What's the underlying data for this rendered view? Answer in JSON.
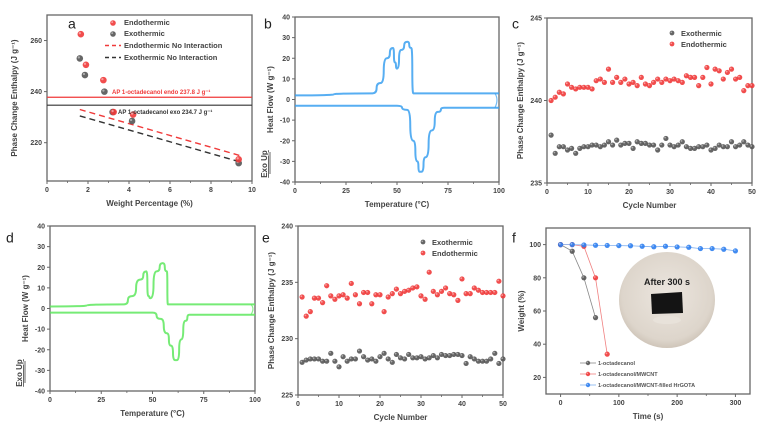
{
  "colors": {
    "endo": "#f03a3a",
    "exo": "#555555",
    "blue_trace": "#3aa0f0",
    "green_trace": "#5ee85e",
    "mwcnt_blue": "#2f7ff0",
    "axis": "#666666"
  },
  "chart_data": [
    {
      "panel": "a",
      "type": "scatter",
      "xlabel": "Weight Percentage (%)",
      "ylabel": "Phase Change Enthalpy (J g⁻¹)",
      "xlim": [
        0,
        10
      ],
      "ylim": [
        205,
        270
      ],
      "xticks": [
        "0",
        "2",
        "4",
        "6",
        "8",
        "10"
      ],
      "yticks": [
        "220",
        "240",
        "260"
      ],
      "legend": [
        "Endothermic",
        "Exothermic",
        "Endothermic No Interaction",
        "Exothermic No Interaction"
      ],
      "series": [
        {
          "name": "Endothermic",
          "x": [
            1.65,
            1.9,
            2.75,
            3.25,
            4.2,
            9.35
          ],
          "y": [
            262.5,
            250.5,
            244.5,
            232,
            231,
            213.5
          ]
        },
        {
          "name": "Exothermic",
          "x": [
            1.6,
            1.85,
            2.8,
            3.2,
            4.15,
            9.35
          ],
          "y": [
            253,
            246.5,
            240,
            232,
            228.5,
            212
          ]
        },
        {
          "name": "Endothermic No Interaction",
          "x": [
            1.6,
            9.4
          ],
          "y": [
            233,
            215
          ]
        },
        {
          "name": "Exothermic No Interaction",
          "x": [
            1.6,
            9.4
          ],
          "y": [
            230.5,
            212.5
          ]
        }
      ],
      "annotations": [
        "AP 1-octadecanol endo 237.8 J g⁻¹",
        "AP 1-octadecanol exo 234.7 J g⁻¹"
      ],
      "hlines": [
        237.8,
        234.7
      ]
    },
    {
      "panel": "b",
      "type": "line",
      "xlabel": "Temperature (°C)",
      "ylabel": "Heat Flow (W g⁻¹)",
      "side_label": "Exo Up",
      "xlim": [
        0,
        100
      ],
      "ylim": [
        -40,
        40
      ],
      "xticks": [
        "0",
        "25",
        "50",
        "75",
        "100"
      ],
      "yticks": [
        "40",
        "30",
        "20",
        "10",
        "0",
        "-10",
        "-20",
        "-30",
        "-40"
      ],
      "heating": {
        "x": [
          0,
          38,
          42,
          45,
          48,
          49,
          50,
          52,
          55,
          57,
          58,
          59,
          100
        ],
        "y": [
          2,
          3,
          8,
          20,
          25,
          18,
          15,
          24,
          28,
          25,
          3,
          3,
          3
        ]
      },
      "cooling": {
        "x": [
          0,
          50,
          55,
          58,
          60,
          61,
          62,
          64,
          67,
          70,
          73,
          100
        ],
        "y": [
          -3,
          -3,
          -5,
          -20,
          -30,
          -35,
          -35,
          -28,
          -15,
          -6,
          -4,
          -4
        ]
      }
    },
    {
      "panel": "c",
      "type": "scatter",
      "xlabel": "Cycle Number",
      "ylabel": "Phase Change Enthalpy (J g⁻¹)",
      "xlim": [
        0,
        50
      ],
      "ylim": [
        235,
        245
      ],
      "xticks": [
        "0",
        "10",
        "20",
        "30",
        "40",
        "50"
      ],
      "yticks": [
        "235",
        "240",
        "245"
      ],
      "legend": [
        "Exothermic",
        "Endothermic"
      ],
      "series": [
        {
          "name": "Exothermic",
          "values": [
            237.9,
            236.8,
            237.2,
            237.2,
            237.0,
            237.1,
            236.8,
            237.1,
            237.2,
            237.2,
            237.3,
            237.3,
            237.2,
            237.3,
            237.5,
            237.3,
            237.6,
            237.3,
            237.4,
            237.4,
            237.1,
            237.5,
            237.4,
            237.4,
            237.3,
            237.3,
            237.0,
            237.3,
            237.7,
            237.3,
            237.2,
            237.3,
            237.5,
            237.2,
            237.1,
            237.1,
            237.2,
            237.2,
            237.3,
            237.0,
            237.1,
            237.3,
            237.2,
            237.2,
            237.5,
            237.2,
            237.3,
            237.5,
            237.3,
            237.2
          ]
        },
        {
          "name": "Endothermic",
          "values": [
            240.0,
            240.2,
            240.5,
            240.4,
            241.0,
            240.8,
            240.7,
            240.8,
            240.8,
            240.8,
            240.7,
            241.2,
            241.3,
            241.1,
            241.9,
            241.1,
            241.4,
            241.1,
            241.3,
            241.0,
            241.1,
            240.9,
            241.4,
            241.0,
            240.9,
            241.1,
            241.3,
            241.1,
            241.3,
            241.2,
            241.3,
            241.2,
            241.1,
            241.5,
            241.4,
            241.4,
            240.9,
            241.4,
            242.0,
            241.0,
            241.9,
            241.8,
            241.3,
            241.7,
            241.9,
            241.3,
            241.4,
            240.6,
            240.9,
            240.9
          ]
        }
      ]
    },
    {
      "panel": "d",
      "type": "line",
      "xlabel": "Temperature (°C)",
      "ylabel": "Heat Flow (W g⁻¹)",
      "side_label": "Exo Up",
      "xlim": [
        0,
        100
      ],
      "ylim": [
        -40,
        40
      ],
      "xticks": [
        "0",
        "25",
        "50",
        "75",
        "100"
      ],
      "yticks": [
        "40",
        "30",
        "20",
        "10",
        "0",
        "-10",
        "-20",
        "-30",
        "-40"
      ],
      "heating": {
        "x": [
          0,
          36,
          40,
          44,
          47,
          48,
          49,
          52,
          55,
          57,
          57.5,
          58,
          100
        ],
        "y": [
          1,
          2,
          6,
          14,
          18,
          6,
          5,
          18,
          22,
          18,
          2,
          2,
          2
        ]
      },
      "cooling": {
        "x": [
          0,
          50,
          54,
          57,
          59,
          61,
          62,
          64,
          66,
          68,
          100
        ],
        "y": [
          -2,
          -2,
          -5,
          -12,
          -18,
          -25,
          -25,
          -15,
          -6,
          -3,
          -3
        ]
      }
    },
    {
      "panel": "e",
      "type": "scatter",
      "xlabel": "Cycle Number",
      "ylabel": "Phase Change Enthalpy (J g⁻¹)",
      "xlim": [
        0,
        50
      ],
      "ylim": [
        225,
        240
      ],
      "xticks": [
        "0",
        "10",
        "20",
        "30",
        "40",
        "50"
      ],
      "yticks": [
        "225",
        "230",
        "235",
        "240"
      ],
      "legend": [
        "Exothermic",
        "Endothermic"
      ],
      "series": [
        {
          "name": "Exothermic",
          "values": [
            227.9,
            228.1,
            228.2,
            228.2,
            228.2,
            228.0,
            228.0,
            228.7,
            228.0,
            227.5,
            228.4,
            228.0,
            228.2,
            228.2,
            228.9,
            228.4,
            228.1,
            228.2,
            228.0,
            228.4,
            228.7,
            228.2,
            227.9,
            228.6,
            228.3,
            228.2,
            228.6,
            228.3,
            228.3,
            228.4,
            228.2,
            228.3,
            228.5,
            228.3,
            228.6,
            228.5,
            228.5,
            228.6,
            228.6,
            228.5,
            227.8,
            228.4,
            228.2,
            228.0,
            228.0,
            228.0,
            228.2,
            228.7,
            227.8,
            228.2
          ]
        },
        {
          "name": "Endothermic",
          "values": [
            233.7,
            232.0,
            232.4,
            233.6,
            233.6,
            233.2,
            234.7,
            233.8,
            233.5,
            233.8,
            233.9,
            233.6,
            234.9,
            233.9,
            233.1,
            234.1,
            234.1,
            233.1,
            233.9,
            233.9,
            232.4,
            233.7,
            234.0,
            234.4,
            234.0,
            234.2,
            234.3,
            234.5,
            234.6,
            233.8,
            233.5,
            235.9,
            234.2,
            233.9,
            234.2,
            234.5,
            234.0,
            233.9,
            233.4,
            235.3,
            234.0,
            234.0,
            234.5,
            234.3,
            234.1,
            234.1,
            234.1,
            234.1,
            235.1,
            233.8
          ]
        }
      ]
    },
    {
      "panel": "f",
      "type": "line",
      "xlabel": "Time (s)",
      "ylabel": "Weight (%)",
      "xlim": [
        -25,
        325
      ],
      "ylim": [
        10,
        110
      ],
      "xticks": [
        "0",
        "100",
        "200",
        "300"
      ],
      "yticks": [
        "20",
        "40",
        "60",
        "80",
        "100"
      ],
      "legend": [
        "1-octadecanol",
        "1-octadecanol/MWCNT",
        "1-octadecanol/MWCNT-filled HrGOTA"
      ],
      "inset_text": "After 300 s",
      "series": [
        {
          "name": "1-octadecanol",
          "x": [
            0,
            20,
            40,
            60
          ],
          "y": [
            100,
            96,
            80,
            56
          ]
        },
        {
          "name": "1-octadecanol/MWCNT",
          "x": [
            0,
            20,
            40,
            60,
            80
          ],
          "y": [
            100,
            100,
            99,
            80,
            34
          ]
        },
        {
          "name": "1-octadecanol/MWCNT-filled HrGOTA",
          "x": [
            0,
            20,
            40,
            60,
            80,
            100,
            120,
            140,
            160,
            180,
            200,
            220,
            240,
            260,
            280,
            300
          ],
          "y": [
            100,
            100,
            99.8,
            99.6,
            99.5,
            99.4,
            99.3,
            99,
            98.7,
            99,
            98.6,
            98.4,
            97.6,
            97.6,
            97.2,
            96.2
          ]
        }
      ]
    }
  ]
}
